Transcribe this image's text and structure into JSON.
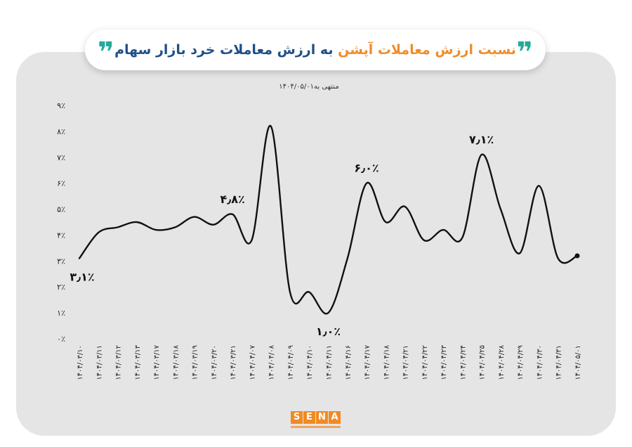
{
  "title": {
    "part_orange": "نسبت ارزش معاملات آپشن",
    "part_blue": " به ارزش معاملات خرد بازار سهام",
    "quote_mark": "❞"
  },
  "logo": {
    "letters": [
      "S",
      "E",
      "N",
      "A"
    ]
  },
  "colors": {
    "panel": "#e6e5e6",
    "line": "#111111",
    "orange": "#f08c2a",
    "blue": "#1f4f87",
    "teal": "#25a99a"
  },
  "chart_data": {
    "type": "line",
    "subtitle": "منتهی به۱۴۰۴/۰۵/۰۱",
    "ylim": [
      0,
      9
    ],
    "y_ticks": [
      "۰٪",
      "۱٪",
      "۲٪",
      "۳٪",
      "۴٪",
      "۵٪",
      "۶٪",
      "۷٪",
      "۸٪",
      "۹٪"
    ],
    "categories": [
      "۱۴۰۴/۰۳/۱۰",
      "۱۴۰۴/۰۳/۱۱",
      "۱۴۰۴/۰۳/۱۲",
      "۱۴۰۴/۰۳/۱۳",
      "۱۴۰۴/۰۳/۱۷",
      "۱۴۰۴/۰۳/۱۸",
      "۱۴۰۴/۰۳/۱۹",
      "۱۴۰۴/۰۳/۲۰",
      "۱۴۰۴/۰۳/۲۱",
      "۱۴۰۴/۰۴/۰۷",
      "۱۴۰۴/۰۴/۰۸",
      "۱۴۰۴/۰۴/۰۹",
      "۱۴۰۴/۰۴/۱۰",
      "۱۴۰۴/۰۴/۱۱",
      "۱۴۰۴/۰۴/۱۶",
      "۱۴۰۴/۰۴/۱۷",
      "۱۴۰۴/۰۴/۱۸",
      "۱۴۰۴/۰۴/۲۱",
      "۱۴۰۴/۰۴/۲۲",
      "۱۴۰۴/۰۴/۲۳",
      "۱۴۰۴/۰۴/۲۴",
      "۱۴۰۴/۰۴/۲۵",
      "۱۴۰۴/۰۴/۲۸",
      "۱۴۰۴/۰۴/۲۹",
      "۱۴۰۴/۰۴/۳۰",
      "۱۴۰۴/۰۴/۳۱",
      "۱۴۰۴/۰۵/۰۱"
    ],
    "values": [
      3.1,
      4.1,
      4.3,
      4.5,
      4.2,
      4.3,
      4.7,
      4.4,
      4.8,
      3.8,
      8.2,
      1.8,
      1.8,
      1.0,
      3.1,
      6.0,
      4.5,
      5.1,
      3.8,
      4.2,
      3.9,
      7.1,
      5.0,
      3.3,
      5.9,
      3.1,
      3.2
    ],
    "annotations": [
      {
        "index": 0,
        "label": "۳٫۱٪"
      },
      {
        "index": 8,
        "label": "۴٫۸٪"
      },
      {
        "index": 13,
        "label": "۱٫۰٪"
      },
      {
        "index": 15,
        "label": "۶٫۰٪"
      },
      {
        "index": 21,
        "label": "۷٫۱٪"
      }
    ]
  }
}
